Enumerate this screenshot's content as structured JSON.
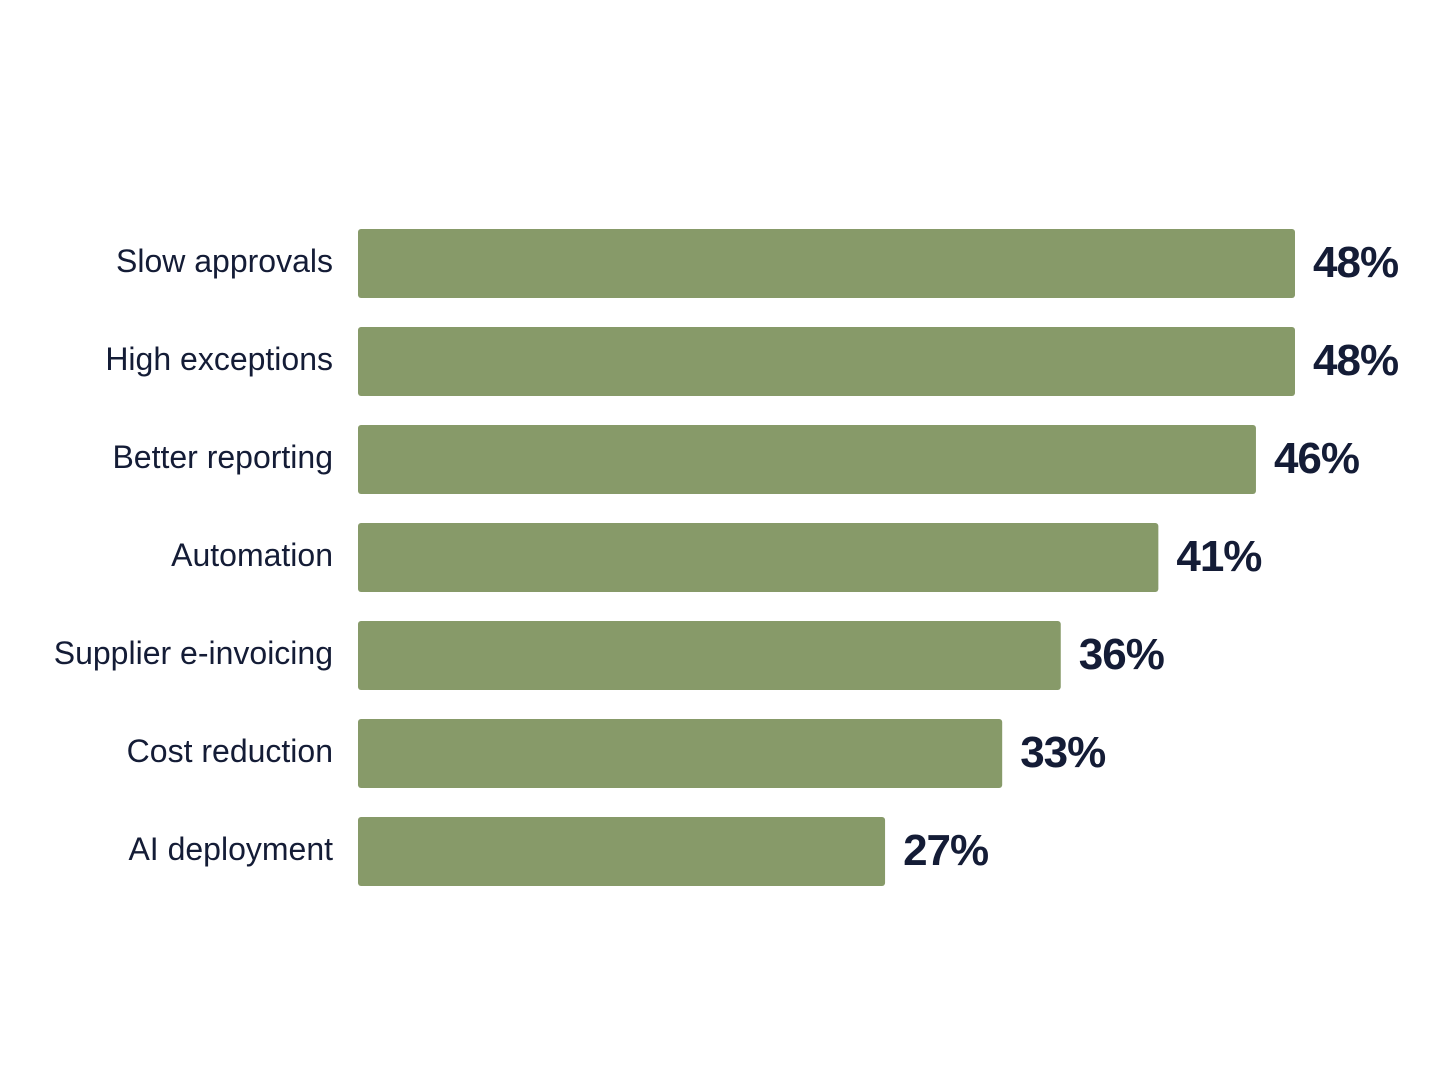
{
  "chart_data": {
    "type": "bar",
    "orientation": "horizontal",
    "categories": [
      "Slow approvals",
      "High exceptions",
      "Better reporting",
      "Automation",
      "Supplier e-invoicing",
      "Cost reduction",
      "AI deployment"
    ],
    "values": [
      48,
      48,
      46,
      41,
      36,
      33,
      27
    ],
    "value_labels": [
      "48%",
      "48%",
      "46%",
      "41%",
      "36%",
      "33%",
      "27%"
    ],
    "color": "#879a69"
  }
}
